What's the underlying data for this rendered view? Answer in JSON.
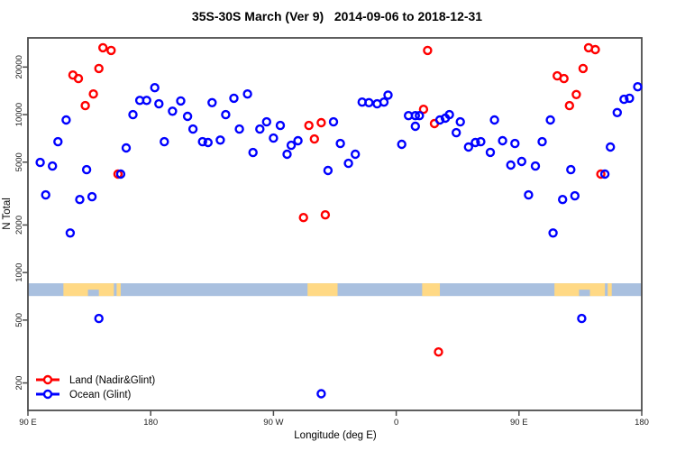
{
  "title": "35S-30S March (Ver 9)   2014-09-06 to 2018-12-31",
  "x_axis": {
    "label": "Longitude (deg E)",
    "ticks": [
      {
        "value": 90,
        "label": "90 E"
      },
      {
        "value": 180,
        "label": "180"
      },
      {
        "value": 270,
        "label": "90 W"
      },
      {
        "value": 360,
        "label": "0"
      },
      {
        "value": 450,
        "label": "90 E"
      },
      {
        "value": 540,
        "label": "180"
      }
    ]
  },
  "y_axis": {
    "label": "N Total",
    "ticks": [
      {
        "value": 200,
        "label": "200"
      },
      {
        "value": 500,
        "label": "500"
      },
      {
        "value": 1000,
        "label": "1000"
      },
      {
        "value": 2000,
        "label": "2000"
      },
      {
        "value": 5000,
        "label": "5000"
      },
      {
        "value": 10000,
        "label": "10000"
      },
      {
        "value": 20000,
        "label": "20000"
      }
    ]
  },
  "legend": [
    {
      "label": "Land (Nadir&Glint)",
      "color": "#FF0000"
    },
    {
      "label": "Ocean (Glint)",
      "color": "#0000FF"
    }
  ],
  "colors": {
    "land": "#FF0000",
    "ocean": "#0000FF",
    "frame": "#4D4D4D",
    "strip_ocean": "#A9C0DF",
    "strip_land": "#FFD985"
  },
  "chart_data": {
    "type": "scatter",
    "x_range_deg": [
      90,
      540
    ],
    "y_log_range": [
      134,
      30600
    ],
    "grid": false,
    "legend_position": "bottom-left-inside",
    "series": [
      {
        "name": "Land (Nadir&Glint)",
        "color": "#FF0000",
        "points": [
          [
            145,
            26500
          ],
          [
            151,
            25500
          ],
          [
            142,
            19600
          ],
          [
            123,
            17800
          ],
          [
            127,
            16900
          ],
          [
            138,
            13500
          ],
          [
            132,
            11400
          ],
          [
            156,
            4200
          ],
          [
            296,
            8540
          ],
          [
            305,
            8890
          ],
          [
            300,
            7010
          ],
          [
            383,
            25500
          ],
          [
            380,
            10800
          ],
          [
            388,
            8770
          ],
          [
            292,
            2230
          ],
          [
            308,
            2320
          ],
          [
            391,
            314
          ],
          [
            478,
            17600
          ],
          [
            483,
            16900
          ],
          [
            492,
            13400
          ],
          [
            487,
            11400
          ],
          [
            497,
            19600
          ],
          [
            501,
            26500
          ],
          [
            506,
            25800
          ],
          [
            510,
            4200
          ]
        ]
      },
      {
        "name": "Ocean (Glint)",
        "color": "#0000FF",
        "points": [
          [
            183,
            14800
          ],
          [
            172,
            12300
          ],
          [
            177,
            12300
          ],
          [
            186,
            11700
          ],
          [
            196,
            10500
          ],
          [
            167,
            10000
          ],
          [
            118,
            9250
          ],
          [
            112,
            6740
          ],
          [
            190,
            6740
          ],
          [
            162,
            6150
          ],
          [
            99,
            4980
          ],
          [
            108,
            4720
          ],
          [
            133,
            4480
          ],
          [
            158,
            4200
          ],
          [
            103,
            3100
          ],
          [
            128,
            2900
          ],
          [
            137,
            3020
          ],
          [
            121,
            1780
          ],
          [
            142,
            512
          ],
          [
            202,
            12200
          ],
          [
            225,
            11900
          ],
          [
            241,
            12700
          ],
          [
            251,
            13500
          ],
          [
            207,
            9750
          ],
          [
            211,
            8100
          ],
          [
            235,
            10000
          ],
          [
            218,
            6740
          ],
          [
            222,
            6660
          ],
          [
            231,
            6900
          ],
          [
            245,
            8100
          ],
          [
            260,
            8100
          ],
          [
            265,
            9000
          ],
          [
            275,
            8540
          ],
          [
            270,
            7100
          ],
          [
            255,
            5750
          ],
          [
            283,
            6390
          ],
          [
            288,
            6830
          ],
          [
            280,
            5610
          ],
          [
            310,
            4430
          ],
          [
            314,
            9000
          ],
          [
            319,
            6560
          ],
          [
            325,
            4910
          ],
          [
            330,
            5610
          ],
          [
            335,
            12000
          ],
          [
            340,
            11900
          ],
          [
            346,
            11700
          ],
          [
            351,
            12000
          ],
          [
            354,
            13300
          ],
          [
            369,
            9850
          ],
          [
            374,
            9850
          ],
          [
            377,
            9850
          ],
          [
            374,
            8430
          ],
          [
            392,
            9250
          ],
          [
            396,
            9500
          ],
          [
            399,
            10000
          ],
          [
            404,
            7680
          ],
          [
            407,
            9000
          ],
          [
            364,
            6480
          ],
          [
            413,
            6230
          ],
          [
            418,
            6660
          ],
          [
            422,
            6740
          ],
          [
            429,
            5770
          ],
          [
            432,
            9250
          ],
          [
            305,
            171
          ],
          [
            496,
            512
          ],
          [
            444,
            4790
          ],
          [
            452,
            5050
          ],
          [
            462,
            4720
          ],
          [
            488,
            4480
          ],
          [
            513,
            4200
          ],
          [
            457,
            3100
          ],
          [
            482,
            2900
          ],
          [
            491,
            3060
          ],
          [
            475,
            1780
          ],
          [
            522,
            10300
          ],
          [
            527,
            12500
          ],
          [
            531,
            12700
          ],
          [
            537,
            15000
          ],
          [
            473,
            9250
          ],
          [
            467,
            6740
          ],
          [
            438,
            6830
          ],
          [
            447,
            6560
          ],
          [
            517,
            6230
          ]
        ]
      }
    ],
    "map_strip": {
      "description": "land/ocean band along the 35S-30S latitude strip",
      "ocean_color": "#A9C0DF",
      "land_color": "#FFD985",
      "n_range": [
        710,
        855
      ],
      "land_segments_deg": [
        [
          116,
          153
        ],
        [
          155,
          158
        ],
        [
          295,
          317
        ],
        [
          379,
          392
        ],
        [
          476,
          513
        ],
        [
          515,
          518
        ]
      ],
      "ocean_notches_deg": [
        [
          134,
          142
        ],
        [
          494,
          502
        ]
      ]
    }
  }
}
